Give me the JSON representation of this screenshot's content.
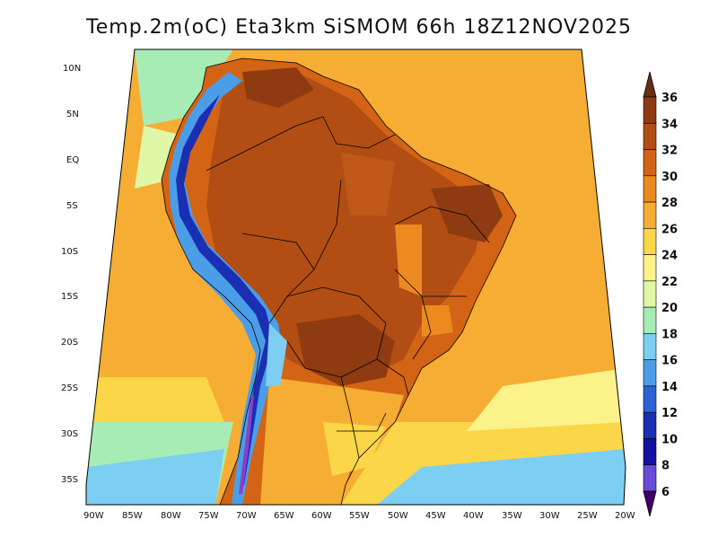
{
  "title": "Temp.2m(oC) Eta3km SiSMOM 66h 18Z12NOV2025",
  "lat_labels": [
    "10N",
    "5N",
    "EQ",
    "5S",
    "10S",
    "15S",
    "20S",
    "25S",
    "30S",
    "35S"
  ],
  "lon_labels": [
    "90W",
    "85W",
    "80W",
    "75W",
    "70W",
    "65W",
    "60W",
    "55W",
    "50W",
    "45W",
    "40W",
    "35W",
    "30W",
    "25W",
    "20W"
  ],
  "colorbar": {
    "labels": [
      "36",
      "34",
      "32",
      "30",
      "28",
      "26",
      "24",
      "22",
      "20",
      "18",
      "16",
      "14",
      "12",
      "10",
      "8",
      "6"
    ],
    "colors": [
      "#6b2e12",
      "#8e3b12",
      "#b24d14",
      "#d46415",
      "#ed8a1f",
      "#f6ad33",
      "#fbd648",
      "#fbf38a",
      "#dff7a6",
      "#a8ecb5",
      "#7ccff2",
      "#4b9de8",
      "#2b62d6",
      "#1b2fb3",
      "#1410a0",
      "#6a4bd8",
      "#8a3fc9",
      "#6b119a",
      "#3c0068"
    ]
  },
  "palette": {
    "ocean_warm": "#f6ad33",
    "ocean_mid": "#fbd648",
    "ocean_cool": "#a8ecb5",
    "land_hot": "#b24d14",
    "land_very_hot": "#8e3b12",
    "land_warm": "#d46415",
    "andes": "#1b2fb3"
  }
}
